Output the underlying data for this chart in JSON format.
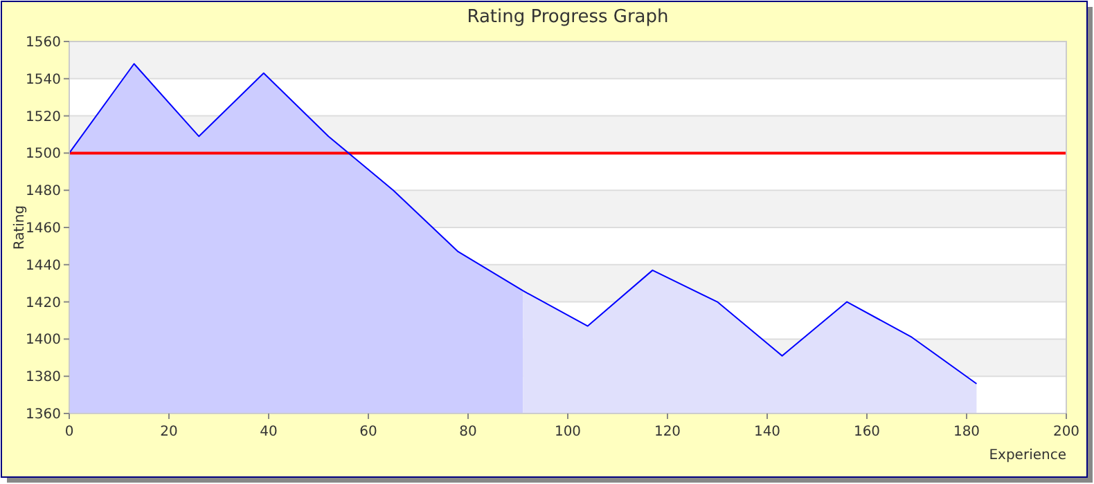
{
  "chart_data": {
    "type": "area",
    "title": "Rating Progress Graph",
    "xlabel": "Experience",
    "ylabel": "Rating",
    "xlim": [
      0,
      200
    ],
    "xticks": [
      0,
      20,
      40,
      60,
      80,
      100,
      120,
      140,
      160,
      180,
      200
    ],
    "ylim": [
      1360,
      1560
    ],
    "yticks": [
      1360,
      1380,
      1400,
      1420,
      1440,
      1460,
      1480,
      1500,
      1520,
      1540,
      1560
    ],
    "grid": "y",
    "series": [
      {
        "color": "#ccccff",
        "x": [
          0,
          13,
          26,
          39,
          52,
          65,
          78,
          91
        ],
        "values": [
          1500,
          1548,
          1509,
          1543,
          1509,
          1480,
          1447,
          1426
        ]
      },
      {
        "color": "#e0e0fc",
        "x": [
          91,
          104,
          117,
          130,
          143,
          156,
          169,
          182
        ],
        "values": [
          1426,
          1407,
          1437,
          1420,
          1391,
          1420,
          1401,
          1376
        ]
      },
      {
        "type": "line",
        "color": "#0000ff",
        "x": [
          0,
          13,
          26,
          39,
          52,
          65,
          78,
          91,
          104,
          117,
          130,
          143,
          156,
          169,
          182
        ],
        "values": [
          1500,
          1548,
          1509,
          1543,
          1509,
          1480,
          1447,
          1426,
          1407,
          1437,
          1420,
          1391,
          1420,
          1401,
          1376
        ]
      }
    ],
    "ref_lines": [
      {
        "axis": "y",
        "value": 1500,
        "color": "#ff0000"
      }
    ]
  }
}
